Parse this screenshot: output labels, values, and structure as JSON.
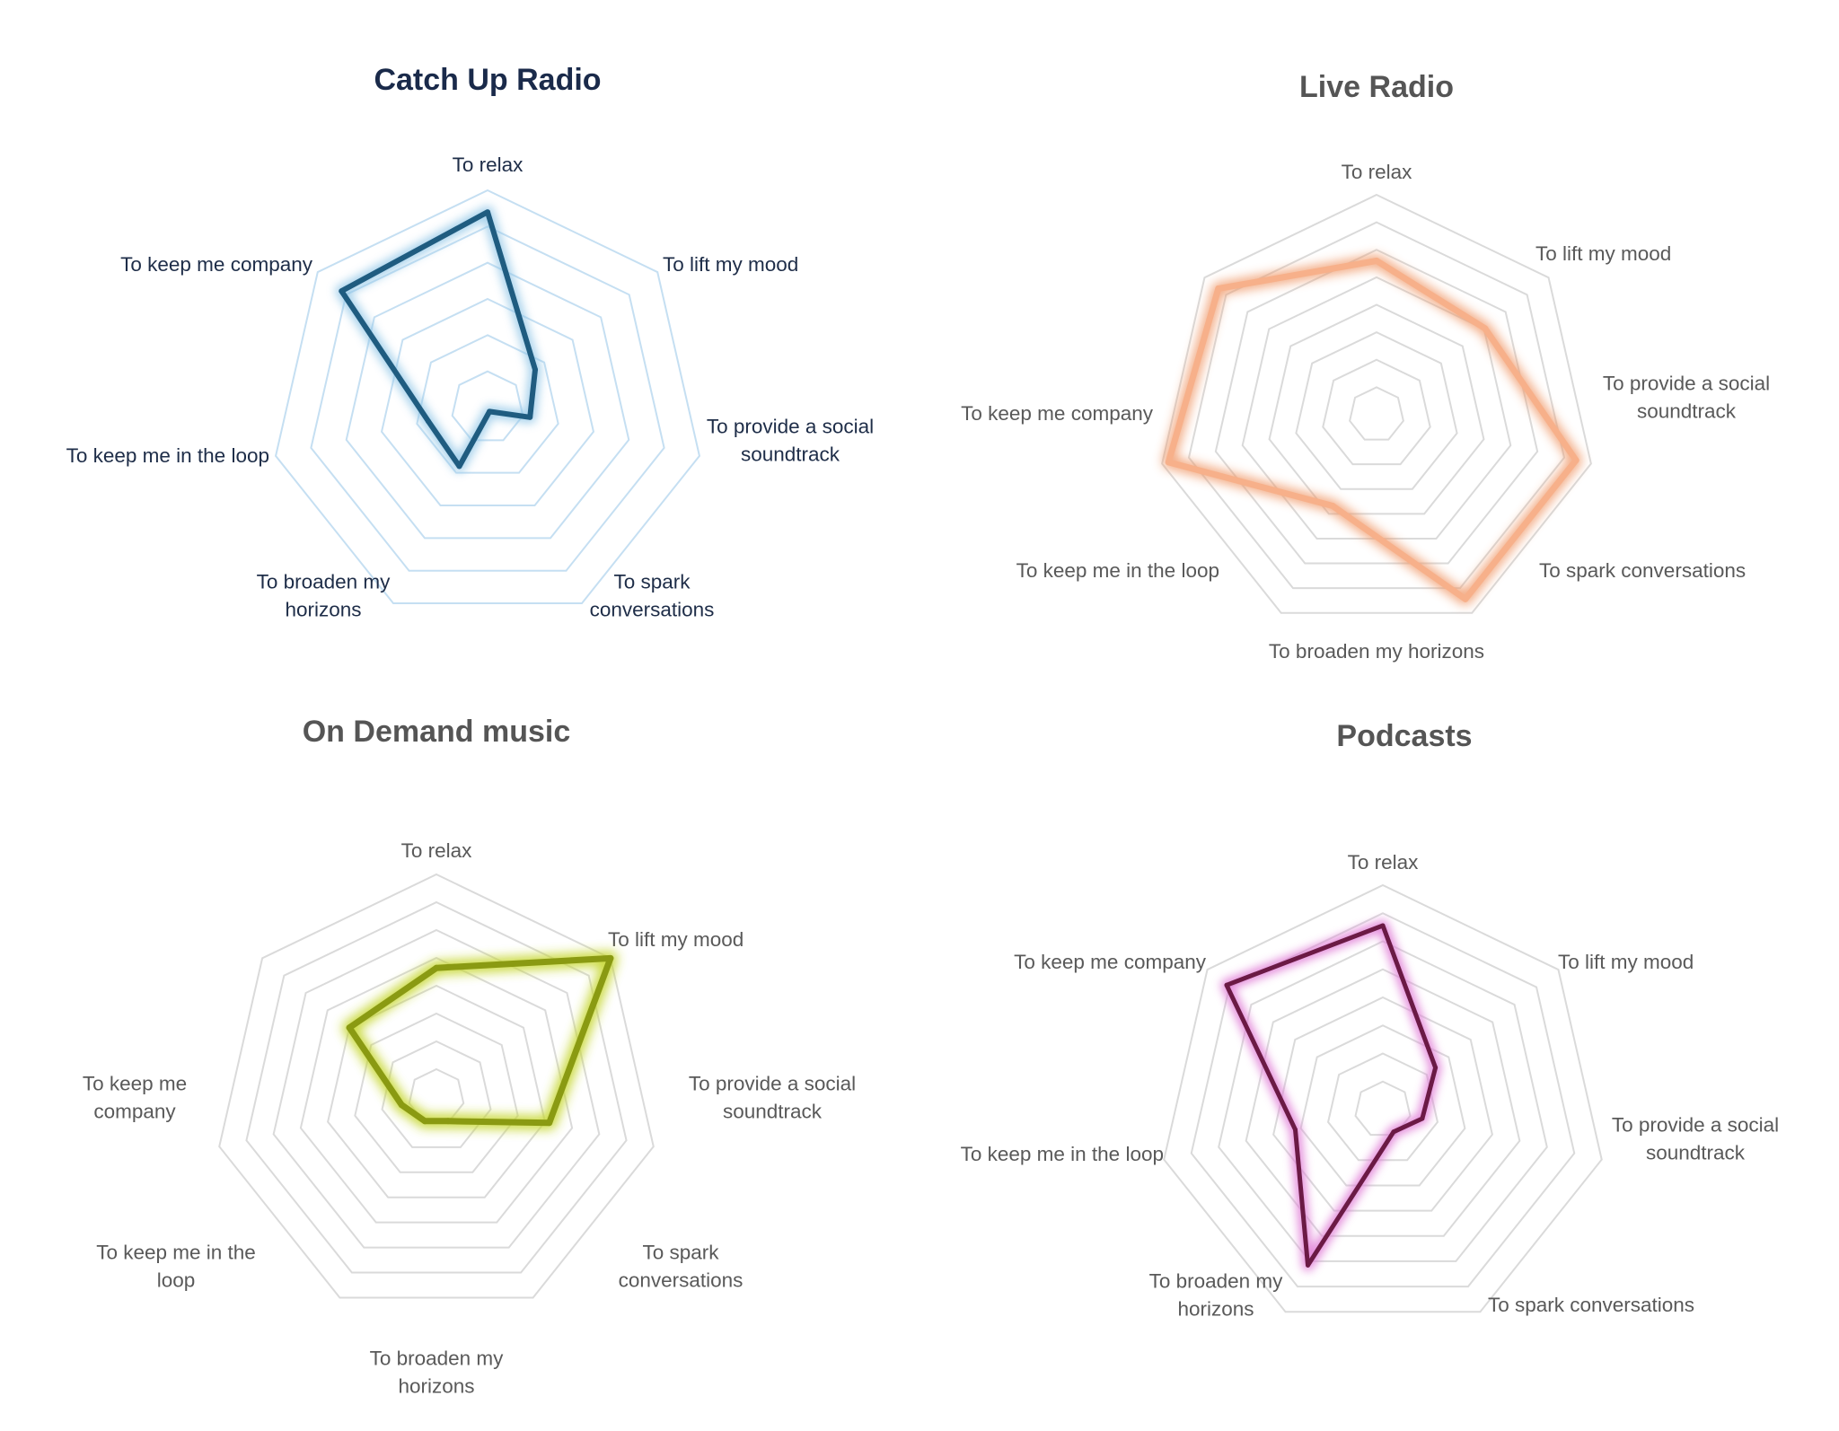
{
  "chart_data": [
    {
      "type": "radar",
      "title": "Catch Up Radio",
      "categories": [
        "To relax",
        "To lift my mood",
        "To provide a social soundtrack",
        "To spark conversations",
        "To broaden my horizons",
        "To keep me in the loop",
        "To keep me company"
      ],
      "label_lines": [
        [
          "To relax"
        ],
        [
          "To lift my mood"
        ],
        [
          "To provide a social",
          "soundtrack"
        ],
        [
          "To spark",
          "conversations"
        ],
        [
          "To broaden my",
          "horizons"
        ],
        [
          "To keep me in the loop"
        ],
        [
          "To keep me company"
        ]
      ],
      "series": [
        {
          "values": [
            90,
            28,
            20,
            2,
            30,
            28,
            86
          ]
        }
      ],
      "rlim": [
        0,
        100
      ],
      "rings": 6,
      "colors": {
        "line": "#1f5c80",
        "glow": "#8cc4e6",
        "grid": "#c5dff2",
        "title": "#1a2a4a",
        "label": "#1e2d48"
      }
    },
    {
      "type": "radar",
      "title": "Live Radio",
      "categories": [
        "To relax",
        "To lift my mood",
        "To provide a social soundtrack",
        "To spark conversations",
        "To broaden my horizons",
        "To keep me in the loop",
        "To keep me company"
      ],
      "label_lines": [
        [
          "To relax"
        ],
        [
          "To lift my mood"
        ],
        [
          "To provide a social",
          "soundtrack"
        ],
        [
          "To spark conversations"
        ],
        [
          "To broaden my horizons"
        ],
        [
          "To keep me in the loop"
        ],
        [
          "To keep me company"
        ]
      ],
      "series": [
        {
          "values": [
            70,
            63,
            93,
            93,
            46,
            97,
            92
          ]
        }
      ],
      "rlim": [
        0,
        100
      ],
      "rings": 8,
      "colors": {
        "line": "#f7b08a",
        "glow": "#f09a6a",
        "grid": "#dadada",
        "title": "#555555",
        "label": "#595959"
      }
    },
    {
      "type": "radar",
      "title": "On Demand music",
      "categories": [
        "To relax",
        "To lift my mood",
        "To provide a social soundtrack",
        "To spark conversations",
        "To broaden my horizons",
        "To keep me in the loop",
        "To keep me company"
      ],
      "label_lines": [
        [
          "To relax"
        ],
        [
          "To lift my mood"
        ],
        [
          "To provide a social",
          "soundtrack"
        ],
        [
          "To spark",
          "conversations"
        ],
        [
          "To broaden my",
          "horizons"
        ],
        [
          "To keep me in the",
          "loop"
        ],
        [
          "To keep me",
          "company"
        ]
      ],
      "series": [
        {
          "values": [
            58,
            100,
            52,
            12,
            12,
            16,
            50
          ]
        }
      ],
      "rlim": [
        0,
        100
      ],
      "rings": 8,
      "colors": {
        "line": "#8a9a12",
        "glow": "#c4d62a",
        "grid": "#dadada",
        "title": "#555555",
        "label": "#595959"
      }
    },
    {
      "type": "radar",
      "title": "Podcasts",
      "categories": [
        "To relax",
        "To lift my mood",
        "To provide a social soundtrack",
        "To spark conversations",
        "To broaden my horizons",
        "To keep me in the loop",
        "To keep me company"
      ],
      "label_lines": [
        [
          "To relax"
        ],
        [
          "To lift my mood"
        ],
        [
          "To provide a social",
          "soundtrack"
        ],
        [
          "To spark conversations"
        ],
        [
          "To broaden my",
          "horizons"
        ],
        [
          "To keep me in the loop"
        ],
        [
          "To keep me company"
        ]
      ],
      "series": [
        {
          "values": [
            82,
            30,
            18,
            11,
            77,
            40,
            89
          ]
        }
      ],
      "rlim": [
        0,
        100
      ],
      "rings": 8,
      "colors": {
        "line": "#6b1a45",
        "glow": "#e07ad6",
        "grid": "#dadada",
        "title": "#555555",
        "label": "#595959"
      }
    }
  ]
}
